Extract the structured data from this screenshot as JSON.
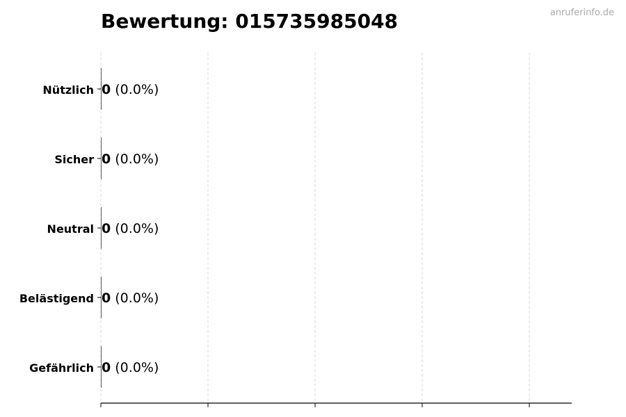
{
  "chart_data": {
    "type": "bar",
    "orientation": "horizontal",
    "title": "Bewertung: 015735985048",
    "watermark": "anruferinfo.de",
    "categories": [
      "Nützlich",
      "Sicher",
      "Neutral",
      "Belästigend",
      "Gefährlich"
    ],
    "values": [
      0,
      0,
      0,
      0,
      0
    ],
    "percent_labels": [
      "(0.0%)",
      "(0.0%)",
      "(0.0%)",
      "(0.0%)",
      "(0.0%)"
    ],
    "xlabel": "",
    "ylabel": "",
    "grid": "vertical dashed",
    "colors": {
      "grid": "#d9d9d9",
      "axis": "#000000",
      "watermark": "#aaaaaa"
    }
  }
}
